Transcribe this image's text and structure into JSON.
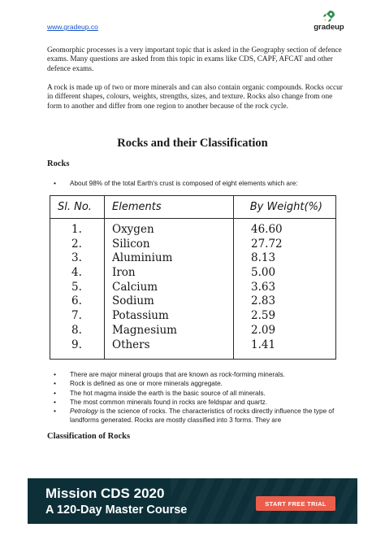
{
  "header": {
    "link": "www.gradeup.co",
    "logo_text": "gradeup",
    "logo_icon": "rocket-icon"
  },
  "intro": {
    "p1": "Geomorphic processes is a very important topic that is asked in the Geography section of defence exams. Many questions are asked from this topic in exams like CDS, CAPF, AFCAT and other defence exams.",
    "p2": "A rock is made up of two or more minerals and can also contain organic compounds. Rocks occur in different shapes, colours, weights, strengths, sizes, and texture. Rocks also change from one form to another and differ from one region to another because of the rock cycle."
  },
  "main_heading": "Rocks and their Classification",
  "rocks_heading": "Rocks",
  "rocks_bullet": "About 98% of the total Earth's crust is composed of eight elements which are:",
  "table": {
    "headers": [
      "Sl. No.",
      "Elements",
      "By Weight(%)"
    ],
    "rows": [
      [
        "1.",
        "Oxygen",
        "46.60"
      ],
      [
        "2.",
        "Silicon",
        "27.72"
      ],
      [
        "3.",
        "Aluminium",
        "8.13"
      ],
      [
        "4.",
        "Iron",
        "5.00"
      ],
      [
        "5.",
        "Calcium",
        "3.63"
      ],
      [
        "6.",
        "Sodium",
        "2.83"
      ],
      [
        "7.",
        "Potassium",
        "2.59"
      ],
      [
        "8.",
        "Magnesium",
        "2.09"
      ],
      [
        "9.",
        "Others",
        "1.41"
      ]
    ]
  },
  "bullets": {
    "b1": "There are major mineral groups that are known as rock-forming minerals.",
    "b2": "Rock is defined as one or more minerals aggregate.",
    "b3": "The hot magma inside the earth is the basic source of all minerals.",
    "b4": "The most common minerals found in rocks are feldspar and quartz.",
    "b5_term": "Petrology",
    "b5_rest": " is the science of rocks. The characteristics of rocks directly influence the type of landforms generated. Rocks are mostly classified into 3 forms. They are"
  },
  "classification_heading": "Classification of Rocks",
  "banner": {
    "title": "Mission CDS 2020",
    "subtitle": "A 120-Day Master Course",
    "cta": "START FREE TRIAL",
    "bg_color": "#0d2f38",
    "cta_color": "#ec5d4c"
  }
}
